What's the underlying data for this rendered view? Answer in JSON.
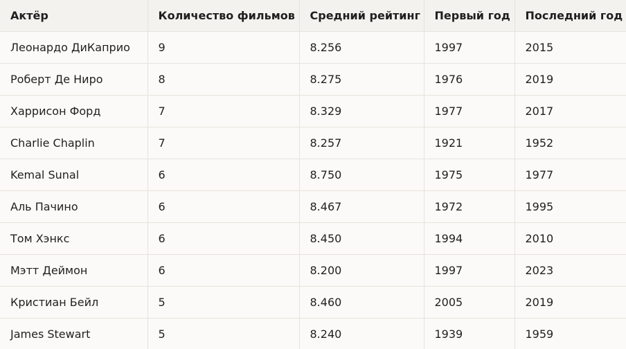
{
  "table": {
    "headers": [
      "Актёр",
      "Количество фильмов",
      "Средний рейтинг",
      "Первый год",
      "Последний год"
    ],
    "rows": [
      [
        "Леонардо ДиКаприо",
        "9",
        "8.256",
        "1997",
        "2015"
      ],
      [
        "Роберт Де Ниро",
        "8",
        "8.275",
        "1976",
        "2019"
      ],
      [
        "Харрисон Форд",
        "7",
        "8.329",
        "1977",
        "2017"
      ],
      [
        "Charlie Chaplin",
        "7",
        "8.257",
        "1921",
        "1952"
      ],
      [
        "Kemal Sunal",
        "6",
        "8.750",
        "1975",
        "1977"
      ],
      [
        "Аль Пачино",
        "6",
        "8.467",
        "1972",
        "1995"
      ],
      [
        "Том Хэнкс",
        "6",
        "8.450",
        "1994",
        "2010"
      ],
      [
        "Мэтт Деймон",
        "6",
        "8.200",
        "1997",
        "2023"
      ],
      [
        "Кристиан Бейл",
        "5",
        "8.460",
        "2005",
        "2019"
      ],
      [
        "James Stewart",
        "5",
        "8.240",
        "1939",
        "1959"
      ]
    ]
  }
}
